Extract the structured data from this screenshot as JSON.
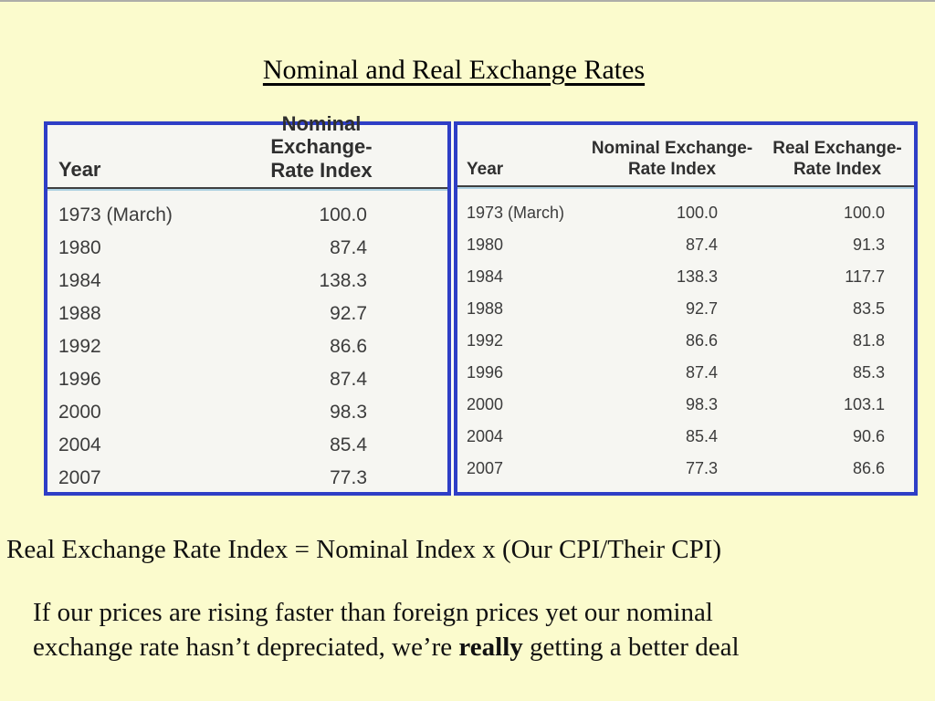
{
  "slide": {
    "title": "Nominal and Real Exchange Rates",
    "formula_line": "Real Exchange Rate Index = Nominal Index x (Our CPI/Their CPI)",
    "paragraph": {
      "line1": "If our prices are rising faster than foreign prices yet our nominal",
      "line2_before": "exchange rate hasn’t depreciated, we’re ",
      "line2_bold": "really",
      "line2_after": " getting a better deal"
    }
  },
  "colors": {
    "background": "#fbfbcd",
    "table_border": "#2e3ec6",
    "table_bg": "#f6f6f2",
    "header_rule": "#3f3f3f",
    "header_rule_accent": "#aed2e2",
    "table_text": "#3c3c3c",
    "body_text": "#111111"
  },
  "tables": {
    "left": {
      "header": {
        "year": "Year",
        "nominal_line1": "Nominal Exchange-",
        "nominal_line2": "Rate Index"
      },
      "rows": [
        [
          "1973 (March)",
          "100.0"
        ],
        [
          "1980",
          "87.4"
        ],
        [
          "1984",
          "138.3"
        ],
        [
          "1988",
          "92.7"
        ],
        [
          "1992",
          "86.6"
        ],
        [
          "1996",
          "87.4"
        ],
        [
          "2000",
          "98.3"
        ],
        [
          "2004",
          "85.4"
        ],
        [
          "2007",
          "77.3"
        ]
      ]
    },
    "right": {
      "header": {
        "year": "Year",
        "nominal_line1": "Nominal Exchange-",
        "nominal_line2": "Rate Index",
        "real_line1": "Real Exchange-",
        "real_line2": "Rate Index"
      },
      "rows": [
        [
          "1973 (March)",
          "100.0",
          "100.0"
        ],
        [
          "1980",
          "87.4",
          "91.3"
        ],
        [
          "1984",
          "138.3",
          "117.7"
        ],
        [
          "1988",
          "92.7",
          "83.5"
        ],
        [
          "1992",
          "86.6",
          "81.8"
        ],
        [
          "1996",
          "87.4",
          "85.3"
        ],
        [
          "2000",
          "98.3",
          "103.1"
        ],
        [
          "2004",
          "85.4",
          "90.6"
        ],
        [
          "2007",
          "77.3",
          "86.6"
        ]
      ]
    }
  }
}
